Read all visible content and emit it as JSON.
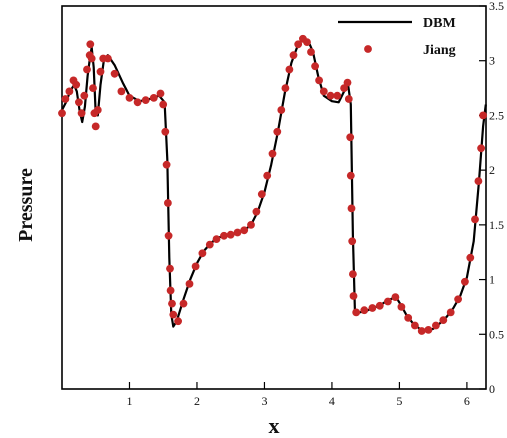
{
  "chart_data": {
    "type": "line",
    "title": "",
    "xlabel": "x",
    "ylabel": "Pressure",
    "xlim": [
      0,
      6.283
    ],
    "ylim": [
      0,
      3.5
    ],
    "x_ticks": [
      1,
      2,
      3,
      4,
      5,
      6
    ],
    "x_tick_labels": [
      "1",
      "2",
      "3",
      "4",
      "5",
      "6"
    ],
    "y_ticks": [
      0,
      0.5,
      1,
      1.5,
      2,
      2.5,
      3,
      3.5
    ],
    "y_tick_labels": [
      "0",
      "0.5",
      "1",
      "1.5",
      "2",
      "2.5",
      "3",
      "3.5"
    ],
    "y_axis_side": "right",
    "grid": false,
    "legend": {
      "position": "top-right",
      "entries": [
        "DBM",
        "Jiang"
      ]
    },
    "series": [
      {
        "name": "DBM",
        "style": "solid line",
        "color": "#000000",
        "points": [
          [
            0.0,
            2.55
          ],
          [
            0.06,
            2.62
          ],
          [
            0.12,
            2.72
          ],
          [
            0.18,
            2.78
          ],
          [
            0.22,
            2.72
          ],
          [
            0.26,
            2.55
          ],
          [
            0.3,
            2.44
          ],
          [
            0.34,
            2.58
          ],
          [
            0.38,
            2.86
          ],
          [
            0.42,
            3.05
          ],
          [
            0.44,
            3.12
          ],
          [
            0.47,
            2.94
          ],
          [
            0.5,
            2.52
          ],
          [
            0.53,
            2.5
          ],
          [
            0.57,
            2.78
          ],
          [
            0.62,
            3.0
          ],
          [
            0.68,
            3.05
          ],
          [
            0.78,
            2.96
          ],
          [
            0.9,
            2.8
          ],
          [
            1.0,
            2.68
          ],
          [
            1.15,
            2.63
          ],
          [
            1.3,
            2.65
          ],
          [
            1.44,
            2.68
          ],
          [
            1.52,
            2.62
          ],
          [
            1.56,
            2.1
          ],
          [
            1.59,
            1.2
          ],
          [
            1.62,
            0.68
          ],
          [
            1.65,
            0.57
          ],
          [
            1.7,
            0.62
          ],
          [
            1.8,
            0.82
          ],
          [
            1.9,
            1.0
          ],
          [
            2.0,
            1.15
          ],
          [
            2.1,
            1.26
          ],
          [
            2.2,
            1.33
          ],
          [
            2.3,
            1.38
          ],
          [
            2.4,
            1.4
          ],
          [
            2.55,
            1.42
          ],
          [
            2.7,
            1.45
          ],
          [
            2.8,
            1.5
          ],
          [
            2.9,
            1.62
          ],
          [
            3.0,
            1.8
          ],
          [
            3.1,
            2.05
          ],
          [
            3.2,
            2.35
          ],
          [
            3.3,
            2.7
          ],
          [
            3.4,
            2.98
          ],
          [
            3.5,
            3.15
          ],
          [
            3.58,
            3.2
          ],
          [
            3.65,
            3.18
          ],
          [
            3.72,
            3.08
          ],
          [
            3.8,
            2.85
          ],
          [
            3.88,
            2.68
          ],
          [
            4.0,
            2.63
          ],
          [
            4.1,
            2.62
          ],
          [
            4.18,
            2.72
          ],
          [
            4.24,
            2.78
          ],
          [
            4.28,
            2.6
          ],
          [
            4.31,
            1.4
          ],
          [
            4.34,
            0.72
          ],
          [
            4.4,
            0.7
          ],
          [
            4.5,
            0.71
          ],
          [
            4.6,
            0.74
          ],
          [
            4.7,
            0.76
          ],
          [
            4.8,
            0.8
          ],
          [
            4.9,
            0.83
          ],
          [
            4.97,
            0.82
          ],
          [
            5.03,
            0.76
          ],
          [
            5.1,
            0.68
          ],
          [
            5.2,
            0.6
          ],
          [
            5.3,
            0.55
          ],
          [
            5.4,
            0.53
          ],
          [
            5.5,
            0.55
          ],
          [
            5.6,
            0.6
          ],
          [
            5.7,
            0.66
          ],
          [
            5.8,
            0.74
          ],
          [
            5.9,
            0.85
          ],
          [
            6.0,
            1.02
          ],
          [
            6.1,
            1.35
          ],
          [
            6.18,
            1.9
          ],
          [
            6.24,
            2.4
          ],
          [
            6.28,
            2.6
          ]
        ]
      },
      {
        "name": "Jiang",
        "style": "markers",
        "color": "#c62828",
        "points": [
          [
            0.0,
            2.52
          ],
          [
            0.05,
            2.65
          ],
          [
            0.11,
            2.72
          ],
          [
            0.17,
            2.82
          ],
          [
            0.21,
            2.78
          ],
          [
            0.25,
            2.62
          ],
          [
            0.29,
            2.52
          ],
          [
            0.33,
            2.68
          ],
          [
            0.37,
            2.92
          ],
          [
            0.41,
            3.05
          ],
          [
            0.42,
            3.15
          ],
          [
            0.44,
            3.02
          ],
          [
            0.46,
            2.75
          ],
          [
            0.48,
            2.52
          ],
          [
            0.5,
            2.4
          ],
          [
            0.53,
            2.55
          ],
          [
            0.57,
            2.9
          ],
          [
            0.61,
            3.02
          ],
          [
            0.68,
            3.02
          ],
          [
            0.78,
            2.88
          ],
          [
            0.88,
            2.72
          ],
          [
            1.0,
            2.66
          ],
          [
            1.12,
            2.62
          ],
          [
            1.24,
            2.64
          ],
          [
            1.36,
            2.66
          ],
          [
            1.46,
            2.7
          ],
          [
            1.5,
            2.6
          ],
          [
            1.53,
            2.35
          ],
          [
            1.55,
            2.05
          ],
          [
            1.57,
            1.7
          ],
          [
            1.58,
            1.4
          ],
          [
            1.6,
            1.1
          ],
          [
            1.61,
            0.9
          ],
          [
            1.63,
            0.78
          ],
          [
            1.65,
            0.68
          ],
          [
            1.72,
            0.62
          ],
          [
            1.8,
            0.78
          ],
          [
            1.89,
            0.96
          ],
          [
            1.98,
            1.12
          ],
          [
            2.08,
            1.24
          ],
          [
            2.19,
            1.32
          ],
          [
            2.29,
            1.37
          ],
          [
            2.4,
            1.4
          ],
          [
            2.5,
            1.41
          ],
          [
            2.6,
            1.43
          ],
          [
            2.7,
            1.45
          ],
          [
            2.8,
            1.5
          ],
          [
            2.88,
            1.62
          ],
          [
            2.96,
            1.78
          ],
          [
            3.04,
            1.95
          ],
          [
            3.12,
            2.15
          ],
          [
            3.19,
            2.35
          ],
          [
            3.25,
            2.55
          ],
          [
            3.31,
            2.75
          ],
          [
            3.37,
            2.92
          ],
          [
            3.43,
            3.05
          ],
          [
            3.5,
            3.15
          ],
          [
            3.57,
            3.2
          ],
          [
            3.63,
            3.17
          ],
          [
            3.69,
            3.08
          ],
          [
            3.75,
            2.95
          ],
          [
            3.81,
            2.82
          ],
          [
            3.88,
            2.72
          ],
          [
            3.98,
            2.68
          ],
          [
            4.08,
            2.68
          ],
          [
            4.18,
            2.75
          ],
          [
            4.23,
            2.8
          ],
          [
            4.25,
            2.65
          ],
          [
            4.27,
            2.3
          ],
          [
            4.28,
            1.95
          ],
          [
            4.29,
            1.65
          ],
          [
            4.3,
            1.35
          ],
          [
            4.31,
            1.05
          ],
          [
            4.32,
            0.85
          ],
          [
            4.36,
            0.7
          ],
          [
            4.48,
            0.72
          ],
          [
            4.6,
            0.74
          ],
          [
            4.71,
            0.76
          ],
          [
            4.83,
            0.8
          ],
          [
            4.94,
            0.84
          ],
          [
            5.03,
            0.75
          ],
          [
            5.13,
            0.65
          ],
          [
            5.23,
            0.58
          ],
          [
            5.33,
            0.53
          ],
          [
            5.43,
            0.54
          ],
          [
            5.54,
            0.58
          ],
          [
            5.65,
            0.63
          ],
          [
            5.76,
            0.7
          ],
          [
            5.87,
            0.82
          ],
          [
            5.97,
            0.98
          ],
          [
            6.05,
            1.2
          ],
          [
            6.12,
            1.55
          ],
          [
            6.17,
            1.9
          ],
          [
            6.21,
            2.2
          ],
          [
            6.24,
            2.5
          ]
        ]
      }
    ]
  }
}
